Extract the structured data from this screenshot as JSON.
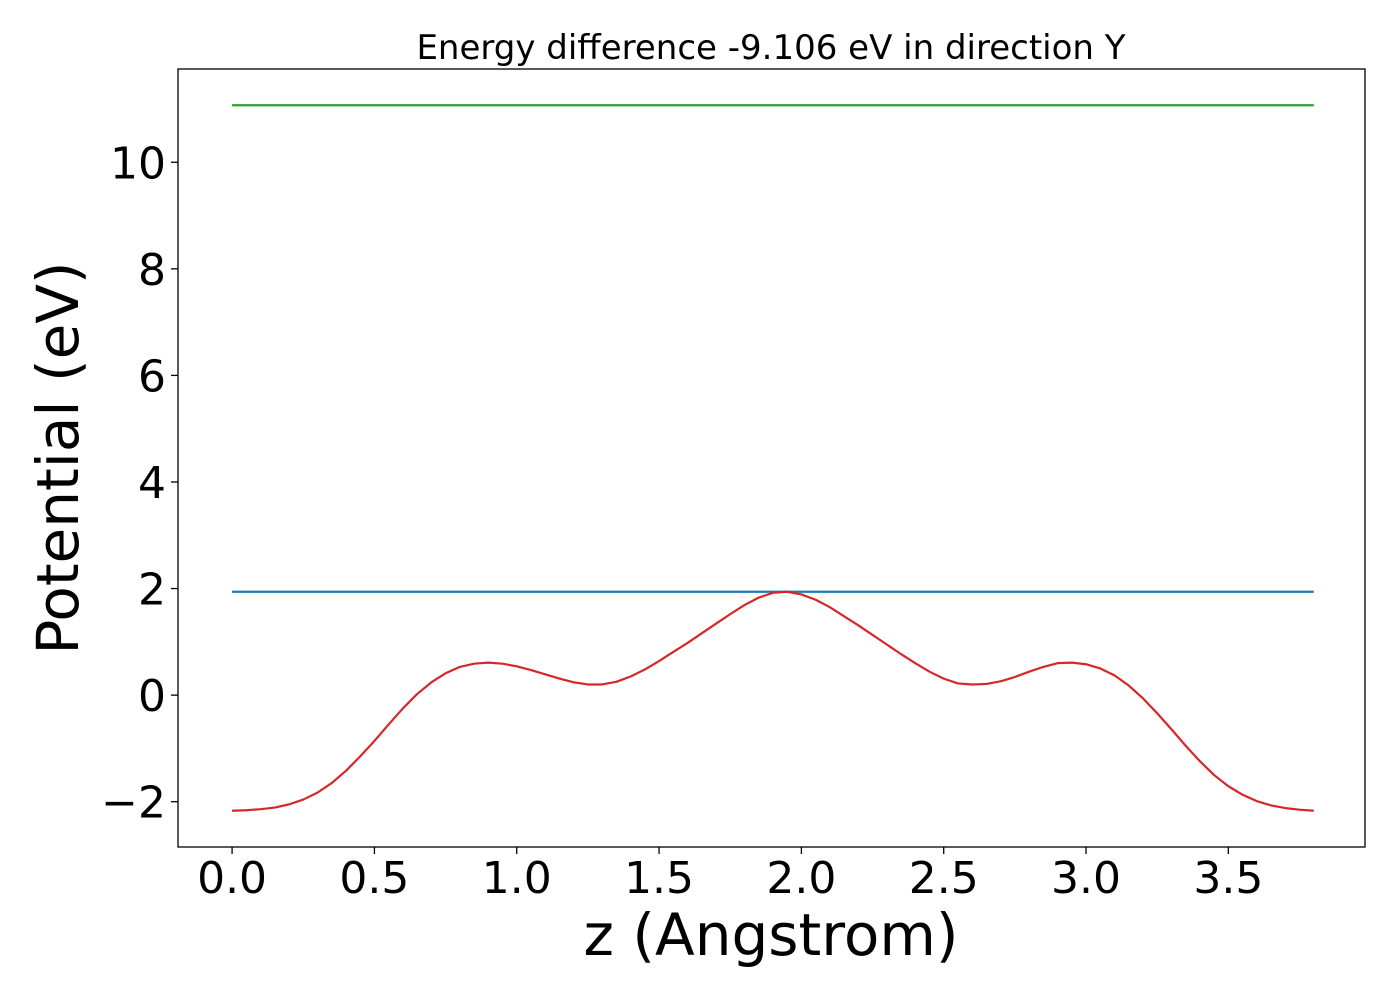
{
  "chart_data": {
    "type": "line",
    "title": "Energy difference -9.106 eV in direction Y",
    "xlabel": "z (Angstrom)",
    "ylabel": "Potential (eV)",
    "xlim": [
      -0.19,
      3.98
    ],
    "ylim": [
      -2.85,
      11.75
    ],
    "xticks": [
      0.0,
      0.5,
      1.0,
      1.5,
      2.0,
      2.5,
      3.0,
      3.5
    ],
    "xtick_labels": [
      "0.0",
      "0.5",
      "1.0",
      "1.5",
      "2.0",
      "2.5",
      "3.0",
      "3.5"
    ],
    "yticks": [
      -2,
      0,
      2,
      4,
      6,
      8,
      10
    ],
    "ytick_labels": [
      "−2",
      "0",
      "2",
      "4",
      "6",
      "8",
      "10"
    ],
    "grid": false,
    "series": [
      {
        "color": "#2ca02c",
        "x": [
          0.0,
          3.8
        ],
        "y": [
          11.07,
          11.07
        ]
      },
      {
        "color": "#1f77b4",
        "x": [
          0.0,
          3.8
        ],
        "y": [
          1.94,
          1.94
        ]
      },
      {
        "color": "#d62728",
        "x": [
          0.0,
          0.05,
          0.1,
          0.15,
          0.2,
          0.25,
          0.3,
          0.35,
          0.4,
          0.45,
          0.5,
          0.55,
          0.6,
          0.65,
          0.7,
          0.75,
          0.8,
          0.85,
          0.9,
          0.95,
          1.0,
          1.05,
          1.1,
          1.15,
          1.2,
          1.25,
          1.3,
          1.35,
          1.4,
          1.45,
          1.5,
          1.55,
          1.6,
          1.65,
          1.7,
          1.75,
          1.8,
          1.85,
          1.9,
          1.95,
          2.0,
          2.05,
          2.1,
          2.15,
          2.2,
          2.25,
          2.3,
          2.35,
          2.4,
          2.45,
          2.5,
          2.55,
          2.6,
          2.65,
          2.7,
          2.75,
          2.8,
          2.85,
          2.9,
          2.95,
          3.0,
          3.05,
          3.1,
          3.15,
          3.2,
          3.25,
          3.3,
          3.35,
          3.4,
          3.45,
          3.5,
          3.55,
          3.6,
          3.65,
          3.7,
          3.75,
          3.8
        ],
        "y": [
          -2.17,
          -2.16,
          -2.14,
          -2.11,
          -2.05,
          -1.96,
          -1.83,
          -1.65,
          -1.42,
          -1.15,
          -0.86,
          -0.55,
          -0.25,
          0.02,
          0.24,
          0.41,
          0.53,
          0.59,
          0.61,
          0.59,
          0.54,
          0.47,
          0.39,
          0.31,
          0.24,
          0.2,
          0.2,
          0.25,
          0.35,
          0.48,
          0.64,
          0.81,
          0.98,
          1.16,
          1.34,
          1.52,
          1.69,
          1.83,
          1.92,
          1.94,
          1.89,
          1.79,
          1.65,
          1.48,
          1.31,
          1.13,
          0.95,
          0.77,
          0.6,
          0.44,
          0.31,
          0.22,
          0.2,
          0.21,
          0.26,
          0.34,
          0.44,
          0.53,
          0.6,
          0.61,
          0.58,
          0.5,
          0.37,
          0.18,
          -0.06,
          -0.34,
          -0.64,
          -0.95,
          -1.24,
          -1.5,
          -1.71,
          -1.87,
          -1.99,
          -2.07,
          -2.12,
          -2.15,
          -2.17
        ]
      }
    ]
  }
}
